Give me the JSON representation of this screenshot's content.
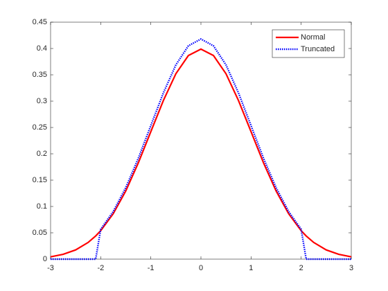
{
  "chart_data": {
    "type": "line",
    "x": [
      -3,
      -2.75,
      -2.5,
      -2.25,
      -2.1,
      -2,
      -1.75,
      -1.5,
      -1.25,
      -1,
      -0.75,
      -0.5,
      -0.25,
      0,
      0.25,
      0.5,
      0.75,
      1,
      1.25,
      1.5,
      1.75,
      2,
      2.1,
      2.25,
      2.5,
      2.75,
      3
    ],
    "series": [
      {
        "name": "Normal",
        "color": "#ff0000",
        "style": "solid",
        "values": [
          0.0044,
          0.0091,
          0.0175,
          0.0317,
          0.044,
          0.054,
          0.0863,
          0.1295,
          0.1826,
          0.242,
          0.3011,
          0.3521,
          0.3867,
          0.3989,
          0.3867,
          0.3521,
          0.3011,
          0.242,
          0.1826,
          0.1295,
          0.0863,
          0.054,
          0.044,
          0.0317,
          0.0175,
          0.0091,
          0.0044
        ]
      },
      {
        "name": "Truncated",
        "color": "#0000ff",
        "style": "dotted",
        "values": [
          0,
          0,
          0,
          0,
          0,
          0.0566,
          0.0904,
          0.1357,
          0.1913,
          0.2535,
          0.3155,
          0.3689,
          0.4051,
          0.418,
          0.4051,
          0.3689,
          0.3155,
          0.2535,
          0.1913,
          0.1357,
          0.0904,
          0.0566,
          0,
          0,
          0,
          0,
          0
        ]
      }
    ],
    "xlim": [
      -3,
      3
    ],
    "xticks": [
      -3,
      -2,
      -1,
      0,
      1,
      2,
      3
    ],
    "ylim": [
      0,
      0.45
    ],
    "yticks": [
      0,
      0.05,
      0.1,
      0.15,
      0.2,
      0.25,
      0.3,
      0.35,
      0.4,
      0.45
    ],
    "grid": false,
    "legend": "top-right"
  }
}
